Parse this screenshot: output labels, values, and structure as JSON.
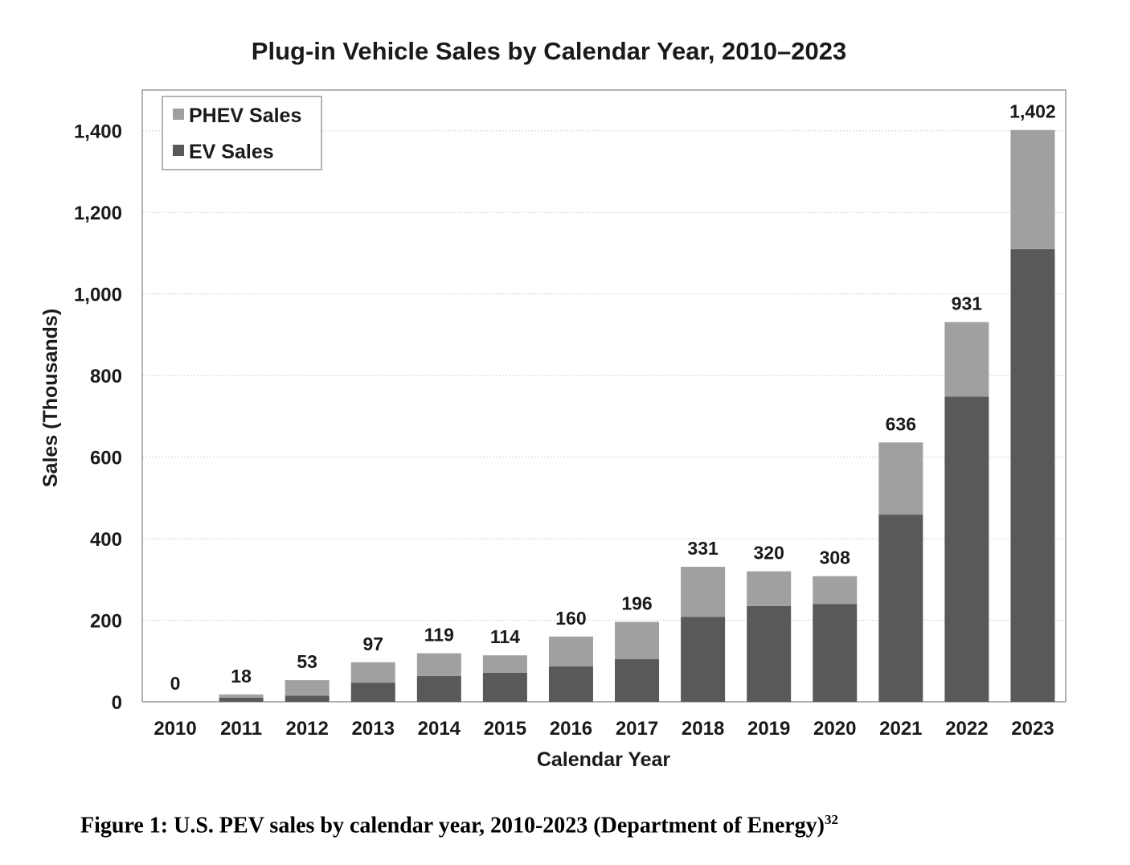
{
  "chart_data": {
    "type": "bar",
    "stacked": true,
    "title": "Plug-in Vehicle Sales by Calendar Year, 2010–2023",
    "xlabel": "Calendar Year",
    "ylabel": "Sales (Thousands)",
    "ylim": [
      0,
      1500
    ],
    "yticks": [
      "0",
      "200",
      "400",
      "600",
      "800",
      "1,000",
      "1,200",
      "1,400"
    ],
    "ytick_values": [
      0,
      200,
      400,
      600,
      800,
      1000,
      1200,
      1400
    ],
    "grid": "horizontal",
    "legend_position": "top-left",
    "categories": [
      "2010",
      "2011",
      "2012",
      "2013",
      "2014",
      "2015",
      "2016",
      "2017",
      "2018",
      "2019",
      "2020",
      "2021",
      "2022",
      "2023"
    ],
    "series": [
      {
        "name": "EV Sales",
        "color": "#595959",
        "values": [
          0,
          10,
          15,
          47,
          63,
          71,
          87,
          105,
          208,
          235,
          240,
          459,
          748,
          1110
        ]
      },
      {
        "name": "PHEV Sales",
        "color": "#a0a0a0",
        "values": [
          0,
          8,
          38,
          50,
          56,
          43,
          73,
          91,
          123,
          85,
          68,
          177,
          183,
          292
        ]
      }
    ],
    "totals": [
      0,
      18,
      53,
      97,
      119,
      114,
      160,
      196,
      331,
      320,
      308,
      636,
      931,
      1402
    ],
    "total_labels": [
      "0",
      "18",
      "53",
      "97",
      "119",
      "114",
      "160",
      "196",
      "331",
      "320",
      "308",
      "636",
      "931",
      "1,402"
    ]
  },
  "caption": {
    "text": "Figure 1: U.S. PEV sales by calendar year, 2010-2023 (Department of Energy)",
    "footnote": "32"
  }
}
